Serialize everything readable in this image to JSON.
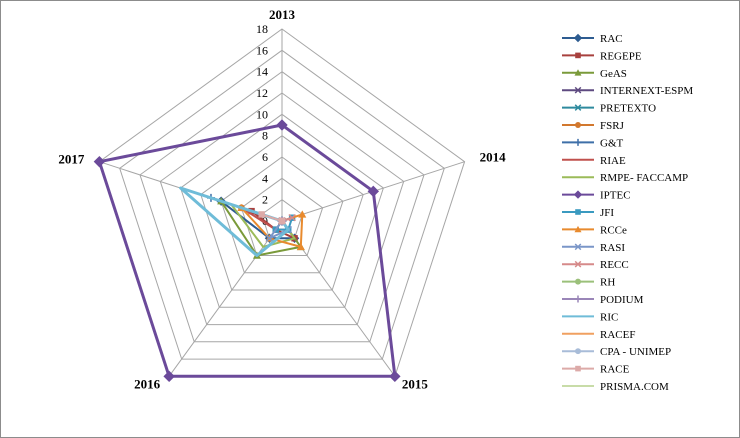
{
  "chart_data": {
    "type": "radar",
    "categories": [
      "2013",
      "2014",
      "2015",
      "2016",
      "2017"
    ],
    "rlim": [
      0,
      18
    ],
    "ticks": [
      0,
      2,
      4,
      6,
      8,
      10,
      12,
      14,
      16,
      18
    ],
    "legend_position": "right",
    "grid": true,
    "series": [
      {
        "name": "RAC",
        "color": "#2E5C91",
        "marker": "diamond",
        "values": [
          0,
          0,
          2,
          2,
          6
        ]
      },
      {
        "name": "REGEPE",
        "color": "#A8403E",
        "marker": "square",
        "values": [
          0,
          0,
          2,
          1,
          3
        ]
      },
      {
        "name": "GeAS",
        "color": "#7A9A3A",
        "marker": "triangle",
        "values": [
          0,
          0,
          3,
          4,
          6
        ]
      },
      {
        "name": "INTERNEXT-ESPM",
        "color": "#5E4A80",
        "marker": "x",
        "values": [
          0,
          0,
          0,
          0,
          0
        ]
      },
      {
        "name": "PRETEXTO",
        "color": "#2E8A9E",
        "marker": "x",
        "values": [
          0,
          0,
          0,
          0,
          0
        ]
      },
      {
        "name": "FSRJ",
        "color": "#D2782E",
        "marker": "circle",
        "values": [
          0,
          0,
          0,
          0,
          4
        ]
      },
      {
        "name": "G&T",
        "color": "#3E6FA8",
        "marker": "plus",
        "values": [
          0,
          0,
          0,
          0,
          7
        ]
      },
      {
        "name": "RIAE",
        "color": "#C0504D",
        "marker": "none",
        "values": [
          0,
          0,
          1,
          1,
          4
        ]
      },
      {
        "name": "RMPE- FACCAMP",
        "color": "#9BBB59",
        "marker": "none",
        "values": [
          0,
          0,
          2,
          3,
          5
        ]
      },
      {
        "name": "IPTEC",
        "color": "#6B4A9A",
        "marker": "diamond",
        "values": [
          9,
          9,
          18,
          18,
          18
        ]
      },
      {
        "name": "JFI",
        "color": "#3A9AC0",
        "marker": "square",
        "values": [
          0,
          1,
          1,
          1,
          0
        ]
      },
      {
        "name": "RCCe",
        "color": "#E88A2E",
        "marker": "triangle",
        "values": [
          0,
          2,
          3,
          2,
          4
        ]
      },
      {
        "name": "RASI",
        "color": "#7A96C8",
        "marker": "x",
        "values": [
          0,
          0,
          1,
          2,
          0
        ]
      },
      {
        "name": "RECC",
        "color": "#D68A8A",
        "marker": "x",
        "values": [
          0,
          1,
          0,
          0,
          0
        ]
      },
      {
        "name": "RH",
        "color": "#9BC07A",
        "marker": "circle",
        "values": [
          0,
          0,
          0,
          0,
          0
        ]
      },
      {
        "name": "PODIUM",
        "color": "#9A86B8",
        "marker": "plus",
        "values": [
          0,
          0,
          0,
          0,
          0
        ]
      },
      {
        "name": "RIC",
        "color": "#6FBCD8",
        "marker": "none",
        "values": [
          0,
          0,
          1,
          4,
          10
        ]
      },
      {
        "name": "RACEF",
        "color": "#F0A060",
        "marker": "none",
        "values": [
          0,
          0,
          0,
          0,
          0
        ]
      },
      {
        "name": "CPA - UNIMEP",
        "color": "#A8BCD8",
        "marker": "circle",
        "values": [
          0,
          0,
          0,
          0,
          0
        ]
      },
      {
        "name": "RACE",
        "color": "#DCAAA8",
        "marker": "square",
        "values": [
          0,
          0,
          0,
          0,
          2
        ]
      },
      {
        "name": "PRISMA.COM",
        "color": "#C8DCA8",
        "marker": "none",
        "values": [
          0,
          0,
          0,
          0,
          0
        ]
      }
    ]
  }
}
